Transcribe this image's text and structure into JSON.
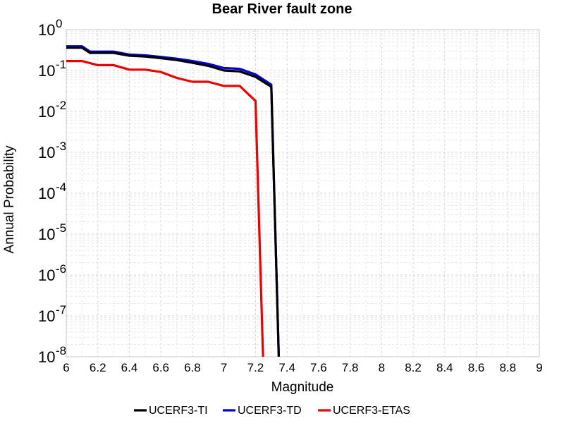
{
  "chart_data": {
    "type": "line",
    "title": "Bear River fault zone",
    "xlabel": "Magnitude",
    "ylabel": "Annual Probability",
    "xlim": [
      6,
      9
    ],
    "ylim": [
      1e-08,
      1
    ],
    "y_scale": "log",
    "grid": true,
    "legend_position": "bottom",
    "x_ticks": [
      "6",
      "6.2",
      "6.4",
      "6.6",
      "6.8",
      "7",
      "7.2",
      "7.4",
      "7.6",
      "7.8",
      "8",
      "8.2",
      "8.4",
      "8.6",
      "8.8",
      "9"
    ],
    "y_ticks": [
      {
        "base": "10",
        "exp": "-8"
      },
      {
        "base": "10",
        "exp": "-7"
      },
      {
        "base": "10",
        "exp": "-6"
      },
      {
        "base": "10",
        "exp": "-5"
      },
      {
        "base": "10",
        "exp": "-4"
      },
      {
        "base": "10",
        "exp": "-3"
      },
      {
        "base": "10",
        "exp": "-2"
      },
      {
        "base": "10",
        "exp": "-1"
      },
      {
        "base": "10",
        "exp": "0"
      }
    ],
    "series": [
      {
        "name": "UCERF3-TI",
        "color": "#000000",
        "x": [
          6.0,
          6.1,
          6.15,
          6.3,
          6.4,
          6.5,
          6.6,
          6.7,
          6.8,
          6.9,
          7.0,
          7.1,
          7.2,
          7.3,
          7.35
        ],
        "y": [
          0.36,
          0.36,
          0.27,
          0.27,
          0.23,
          0.22,
          0.2,
          0.18,
          0.155,
          0.13,
          0.1,
          0.095,
          0.07,
          0.04,
          5e-09
        ]
      },
      {
        "name": "UCERF3-TD",
        "color": "#0000dd",
        "x": [
          6.0,
          6.1,
          6.15,
          6.3,
          6.4,
          6.5,
          6.6,
          6.7,
          6.8,
          6.9,
          7.0,
          7.1,
          7.2,
          7.3,
          7.35
        ],
        "y": [
          0.39,
          0.39,
          0.29,
          0.29,
          0.245,
          0.235,
          0.215,
          0.195,
          0.17,
          0.145,
          0.115,
          0.11,
          0.08,
          0.045,
          5e-09
        ]
      },
      {
        "name": "UCERF3-ETAS",
        "color": "#ee0000",
        "x": [
          6.0,
          6.1,
          6.2,
          6.3,
          6.4,
          6.5,
          6.6,
          6.7,
          6.8,
          6.9,
          7.0,
          7.1,
          7.2,
          7.25
        ],
        "y": [
          0.17,
          0.17,
          0.135,
          0.135,
          0.105,
          0.105,
          0.092,
          0.066,
          0.053,
          0.053,
          0.042,
          0.042,
          0.018,
          5e-09
        ]
      }
    ]
  }
}
